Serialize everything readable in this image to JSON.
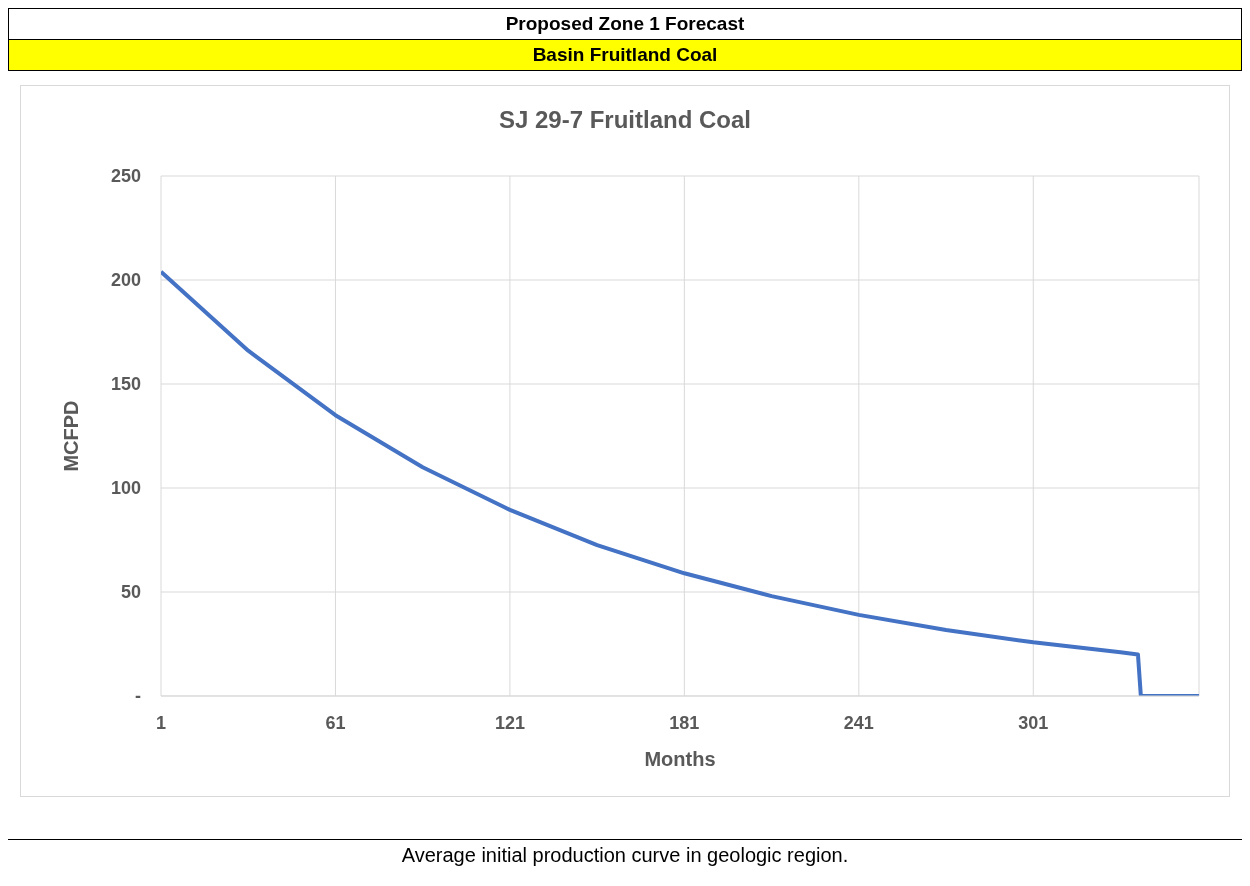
{
  "chart_data": {
    "type": "line",
    "title": "SJ 29-7 Fruitland Coal",
    "subtitle": "Basin Fruitland Coal",
    "annotations": [
      "Proposed Zone 1 Forecast",
      "Average initial production curve in geologic region."
    ],
    "xlabel": "Months",
    "ylabel": "MCFPD",
    "x": [
      1,
      31,
      61,
      91,
      121,
      151,
      181,
      211,
      241,
      271,
      301,
      331,
      337,
      338,
      358
    ],
    "series": [
      {
        "color": "#4472c4",
        "values": [
          204,
          166,
          135,
          110,
          89.5,
          72.5,
          59,
          48,
          39,
          31.7,
          25.8,
          21,
          20,
          0,
          0
        ]
      }
    ],
    "xlim": [
      1,
      358
    ],
    "xticks": [
      1,
      61,
      121,
      181,
      241,
      301
    ],
    "ylim": [
      0,
      250
    ],
    "yticks": [
      {
        "value": 0,
        "label": "-"
      },
      50,
      100,
      150,
      200,
      250
    ],
    "grid": true,
    "legend": false,
    "marker": "none",
    "line_style": "solid"
  }
}
